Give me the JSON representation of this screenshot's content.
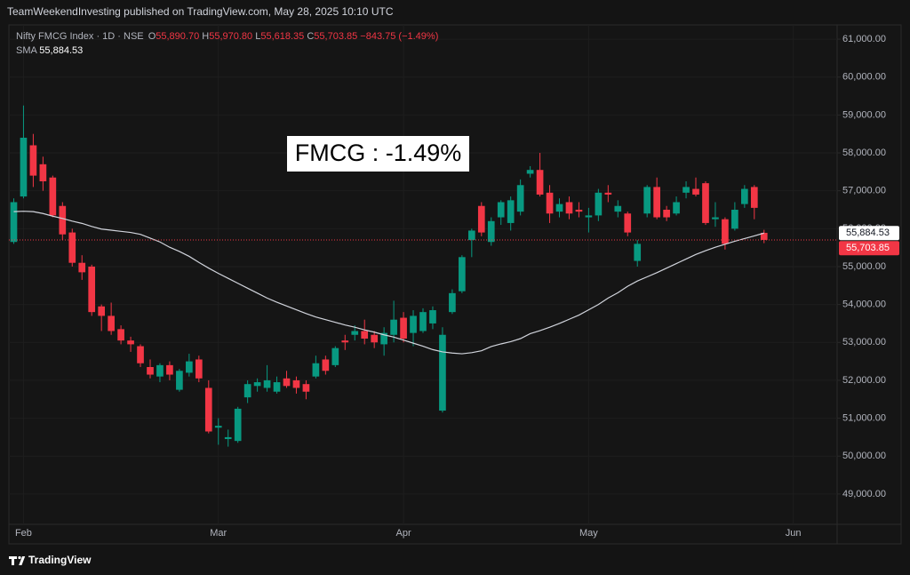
{
  "header": {
    "publisher": "TeamWeekendInvesting published on TradingView.com, May 28, 2025 10:10 UTC",
    "brand": "TradingView"
  },
  "chart_data": {
    "type": "candlestick",
    "legend": {
      "symbol": "Nifty FMCG Index · 1D · NSE",
      "open_key": "O",
      "open": "55,890.70",
      "high_key": "H",
      "high": "55,970.80",
      "low_key": "L",
      "low": "55,618.35",
      "close_key": "C",
      "close": "55,703.85",
      "change": "−843.75 (−1.49%)"
    },
    "annotation": "FMCG : -1.49%",
    "categories": [
      null,
      "Feb",
      null,
      null,
      null,
      null,
      null,
      null,
      null,
      null,
      null,
      null,
      null,
      null,
      null,
      null,
      null,
      null,
      null,
      null,
      null,
      "Mar",
      null,
      null,
      null,
      null,
      null,
      null,
      null,
      null,
      null,
      null,
      null,
      null,
      null,
      null,
      null,
      null,
      null,
      null,
      "Apr",
      null,
      null,
      null,
      null,
      null,
      null,
      null,
      null,
      null,
      null,
      null,
      null,
      null,
      null,
      null,
      null,
      null,
      null,
      "May",
      null,
      null,
      null,
      null,
      null,
      null,
      null,
      null,
      null,
      null,
      null,
      null,
      null,
      null,
      null,
      null,
      null,
      null,
      null,
      null,
      "Jun",
      null,
      null,
      null,
      null
    ],
    "candles": {
      "up_color": "#089981",
      "down_color": "#f23645",
      "open": [
        55650,
        56850,
        58200,
        57700,
        57350,
        56600,
        55900,
        55100,
        55000,
        53950,
        53700,
        53350,
        53050,
        52900,
        52350,
        52100,
        52400,
        51750,
        52200,
        52550,
        51800,
        50750,
        50450,
        50400,
        51550,
        51850,
        51800,
        51700,
        52050,
        52000,
        51900,
        52100,
        52550,
        52400,
        53050,
        53200,
        53300,
        53200,
        52950,
        53200,
        53650,
        53250,
        53300,
        53500,
        51200,
        53800,
        54350,
        55700,
        56600,
        55650,
        56300,
        56150,
        56450,
        57450,
        57550,
        56950,
        56450,
        56700,
        56500,
        56300,
        56350,
        56950,
        56450,
        56400,
        55150,
        56400,
        57100,
        56500,
        56400,
        56950,
        57050,
        57200,
        56250,
        56250,
        56000,
        56650,
        57100,
        55890.7,
        null,
        null,
        null,
        null,
        null,
        null,
        null
      ],
      "high": [
        56800,
        59250,
        58500,
        57900,
        57400,
        56700,
        56000,
        55300,
        55050,
        54000,
        54050,
        53450,
        53150,
        52950,
        52550,
        52450,
        52500,
        52300,
        52700,
        52650,
        52000,
        51000,
        50700,
        51300,
        52000,
        52050,
        52400,
        52100,
        52250,
        52100,
        52000,
        52650,
        52650,
        52900,
        53200,
        53450,
        53600,
        53300,
        53400,
        54100,
        53800,
        53850,
        53900,
        53950,
        53400,
        54400,
        55300,
        56000,
        56700,
        56300,
        56750,
        56850,
        57300,
        57650,
        58000,
        57150,
        56800,
        56850,
        56700,
        56550,
        57050,
        57150,
        56750,
        56450,
        55700,
        57150,
        57350,
        56600,
        56850,
        57250,
        57350,
        57250,
        56700,
        56300,
        56700,
        57150,
        57150,
        55970.8,
        null,
        null,
        null,
        null,
        null,
        null,
        null
      ],
      "low": [
        55600,
        56800,
        57100,
        57000,
        56300,
        55700,
        55000,
        54650,
        53700,
        53300,
        53200,
        52950,
        52750,
        52350,
        52050,
        51950,
        52000,
        51700,
        52100,
        51950,
        50600,
        50300,
        50250,
        50350,
        51400,
        51700,
        51700,
        51650,
        51800,
        51650,
        51500,
        52050,
        52150,
        52350,
        52800,
        53050,
        52950,
        52850,
        52650,
        53000,
        53000,
        52900,
        53250,
        53350,
        51150,
        53750,
        54300,
        55250,
        55800,
        55550,
        56100,
        55950,
        56350,
        57350,
        56850,
        56150,
        56300,
        56250,
        56300,
        55900,
        56200,
        56700,
        56300,
        55800,
        55000,
        56300,
        56250,
        56200,
        56350,
        56800,
        56850,
        56100,
        56050,
        55450,
        55950,
        56550,
        56250,
        55618.35,
        null,
        null,
        null,
        null,
        null,
        null,
        null
      ],
      "close": [
        56700,
        58400,
        57400,
        57250,
        56350,
        55850,
        55100,
        54850,
        53800,
        53700,
        53300,
        53050,
        52950,
        52450,
        52150,
        52400,
        52150,
        52250,
        52500,
        52050,
        50650,
        50800,
        50500,
        51250,
        51900,
        51950,
        52000,
        51950,
        51850,
        51800,
        51700,
        52450,
        52250,
        52850,
        53000,
        53300,
        53100,
        53000,
        53250,
        53600,
        53100,
        53700,
        53800,
        53850,
        53200,
        54300,
        55250,
        55950,
        55900,
        56200,
        56700,
        56750,
        57150,
        57550,
        56900,
        56400,
        56650,
        56400,
        56450,
        56350,
        56950,
        56900,
        56600,
        55900,
        55600,
        57100,
        56300,
        56300,
        56700,
        57100,
        56900,
        56150,
        56300,
        55600,
        56500,
        57050,
        56550,
        55703.85,
        null,
        null,
        null,
        null,
        null,
        null,
        null
      ]
    },
    "sma": {
      "name": "SMA",
      "color": "#d1d4dc",
      "value_label": "55,884.53",
      "values": [
        56450,
        56460,
        56450,
        56400,
        56330,
        56270,
        56200,
        56140,
        56060,
        55990,
        55960,
        55930,
        55900,
        55850,
        55750,
        55650,
        55510,
        55400,
        55270,
        55110,
        54960,
        54820,
        54690,
        54560,
        54430,
        54300,
        54170,
        54060,
        53960,
        53860,
        53760,
        53670,
        53600,
        53530,
        53460,
        53400,
        53330,
        53270,
        53200,
        53140,
        53060,
        52980,
        52900,
        52810,
        52750,
        52720,
        52700,
        52730,
        52780,
        52890,
        52960,
        53020,
        53100,
        53230,
        53310,
        53400,
        53500,
        53610,
        53720,
        53860,
        54000,
        54170,
        54310,
        54480,
        54620,
        54730,
        54840,
        54960,
        55080,
        55200,
        55320,
        55420,
        55510,
        55590,
        55670,
        55740,
        55810,
        55884.53,
        null,
        null,
        null,
        null,
        null,
        null,
        null
      ]
    },
    "ylim": [
      48200,
      61330
    ],
    "yticks": [
      {
        "value": 49000,
        "label": "49,000.00"
      },
      {
        "value": 50000,
        "label": "50,000.00"
      },
      {
        "value": 51000,
        "label": "51,000.00"
      },
      {
        "value": 52000,
        "label": "52,000.00"
      },
      {
        "value": 53000,
        "label": "53,000.00"
      },
      {
        "value": 54000,
        "label": "54,000.00"
      },
      {
        "value": 55000,
        "label": "55,000.00"
      },
      {
        "value": 56000,
        "label": "56,000.00"
      },
      {
        "value": 57000,
        "label": "57,000.00"
      },
      {
        "value": 58000,
        "label": "58,000.00"
      },
      {
        "value": 59000,
        "label": "59,000.00"
      },
      {
        "value": 60000,
        "label": "60,000.00"
      },
      {
        "value": 61000,
        "label": "61,000.00"
      }
    ],
    "grid": true,
    "grid_color": "#1e1e1e"
  }
}
